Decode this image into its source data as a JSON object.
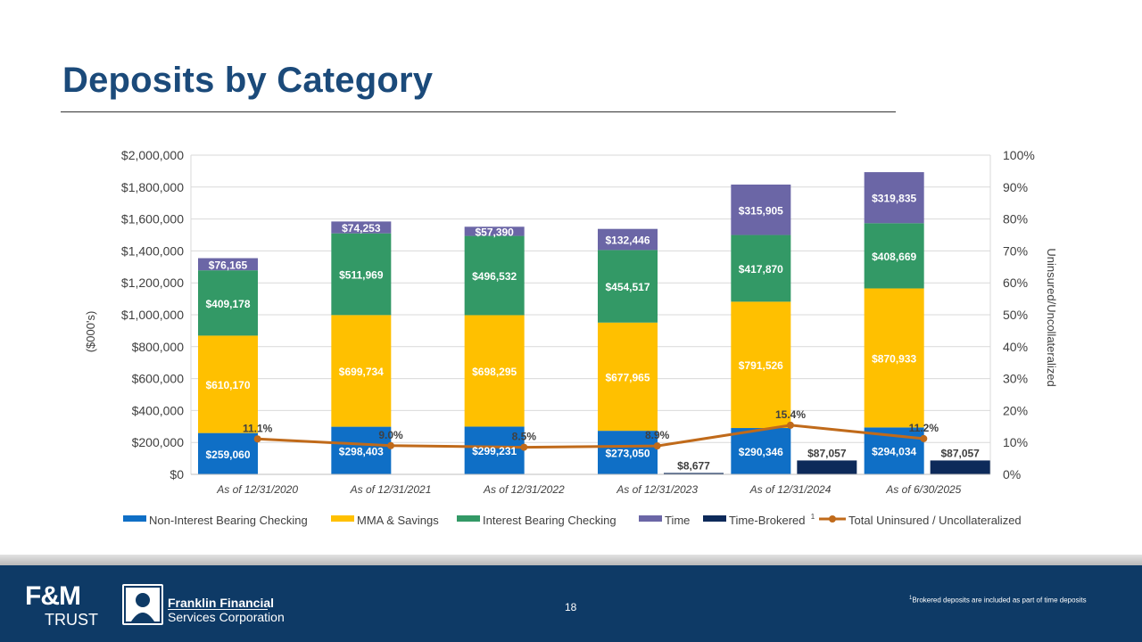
{
  "page": {
    "title": "Deposits by Category",
    "page_number": "18",
    "footnote_marker": "1",
    "footnote": "Brokered deposits are included as part of time deposits"
  },
  "footer": {
    "brand_mark": "F&M",
    "brand_sub": "TRUST",
    "company_line1": "Franklin Financial",
    "company_line2": "Services Corporation"
  },
  "colors": {
    "non_interest": "#0f6fc6",
    "mma": "#ffc000",
    "interest": "#339966",
    "time": "#6b66a6",
    "brokered": "#0d2a5a",
    "line": "#c06a1a",
    "title": "#1b4a7a",
    "footer": "#0e3a66"
  },
  "chart_data": {
    "type": "bar",
    "stacked": true,
    "categories": [
      "As of 12/31/2020",
      "As of 12/31/2021",
      "As of 12/31/2022",
      "As of 12/31/2023",
      "As of 12/31/2024",
      "As of 6/30/2025"
    ],
    "ylabel": "($000's)",
    "ylim": [
      0,
      2000000
    ],
    "y_ticks": [
      "$0",
      "$200,000",
      "$400,000",
      "$600,000",
      "$800,000",
      "$1,000,000",
      "$1,200,000",
      "$1,400,000",
      "$1,600,000",
      "$1,800,000",
      "$2,000,000"
    ],
    "y2label": "Uninsured/Uncollateralized",
    "y2lim": [
      0,
      100
    ],
    "y2_ticks": [
      "0%",
      "10%",
      "20%",
      "30%",
      "40%",
      "50%",
      "60%",
      "70%",
      "80%",
      "90%",
      "100%"
    ],
    "gridlines": true,
    "legend_position": "bottom",
    "series": [
      {
        "name": "Non-Interest Bearing Checking",
        "key": "non_interest",
        "values": [
          259060,
          298403,
          299231,
          273050,
          290346,
          294034
        ],
        "labels": [
          "$259,060",
          "$298,403",
          "$299,231",
          "$273,050",
          "$290,346",
          "$294,034"
        ]
      },
      {
        "name": "MMA & Savings",
        "key": "mma",
        "values": [
          610170,
          699734,
          698295,
          677965,
          791526,
          870933
        ],
        "labels": [
          "$610,170",
          "$699,734",
          "$698,295",
          "$677,965",
          "$791,526",
          "$870,933"
        ]
      },
      {
        "name": "Interest Bearing Checking",
        "key": "interest",
        "values": [
          409178,
          511969,
          496532,
          454517,
          417870,
          408669
        ],
        "labels": [
          "$409,178",
          "$511,969",
          "$496,532",
          "$454,517",
          "$417,870",
          "$408,669"
        ]
      },
      {
        "name": "Time",
        "key": "time",
        "values": [
          76165,
          74253,
          57390,
          132446,
          315905,
          319835
        ],
        "labels": [
          "$76,165",
          "$74,253",
          "$57,390",
          "$132,446",
          "$315,905",
          "$319,835"
        ]
      }
    ],
    "brokered": {
      "name": "Time-Brokered",
      "superscript": "1",
      "key": "brokered",
      "values": [
        null,
        null,
        null,
        8677,
        87057,
        87057
      ],
      "labels": [
        "",
        "",
        "",
        "$8,677",
        "$87,057",
        "$87,057"
      ]
    },
    "line": {
      "name": "Total Uninsured / Uncollateralized",
      "key": "line",
      "values": [
        11.1,
        9.0,
        8.5,
        8.9,
        15.4,
        11.2
      ],
      "labels": [
        "11.1%",
        "9.0%",
        "8.5%",
        "8.9%",
        "15.4%",
        "11.2%"
      ]
    }
  }
}
